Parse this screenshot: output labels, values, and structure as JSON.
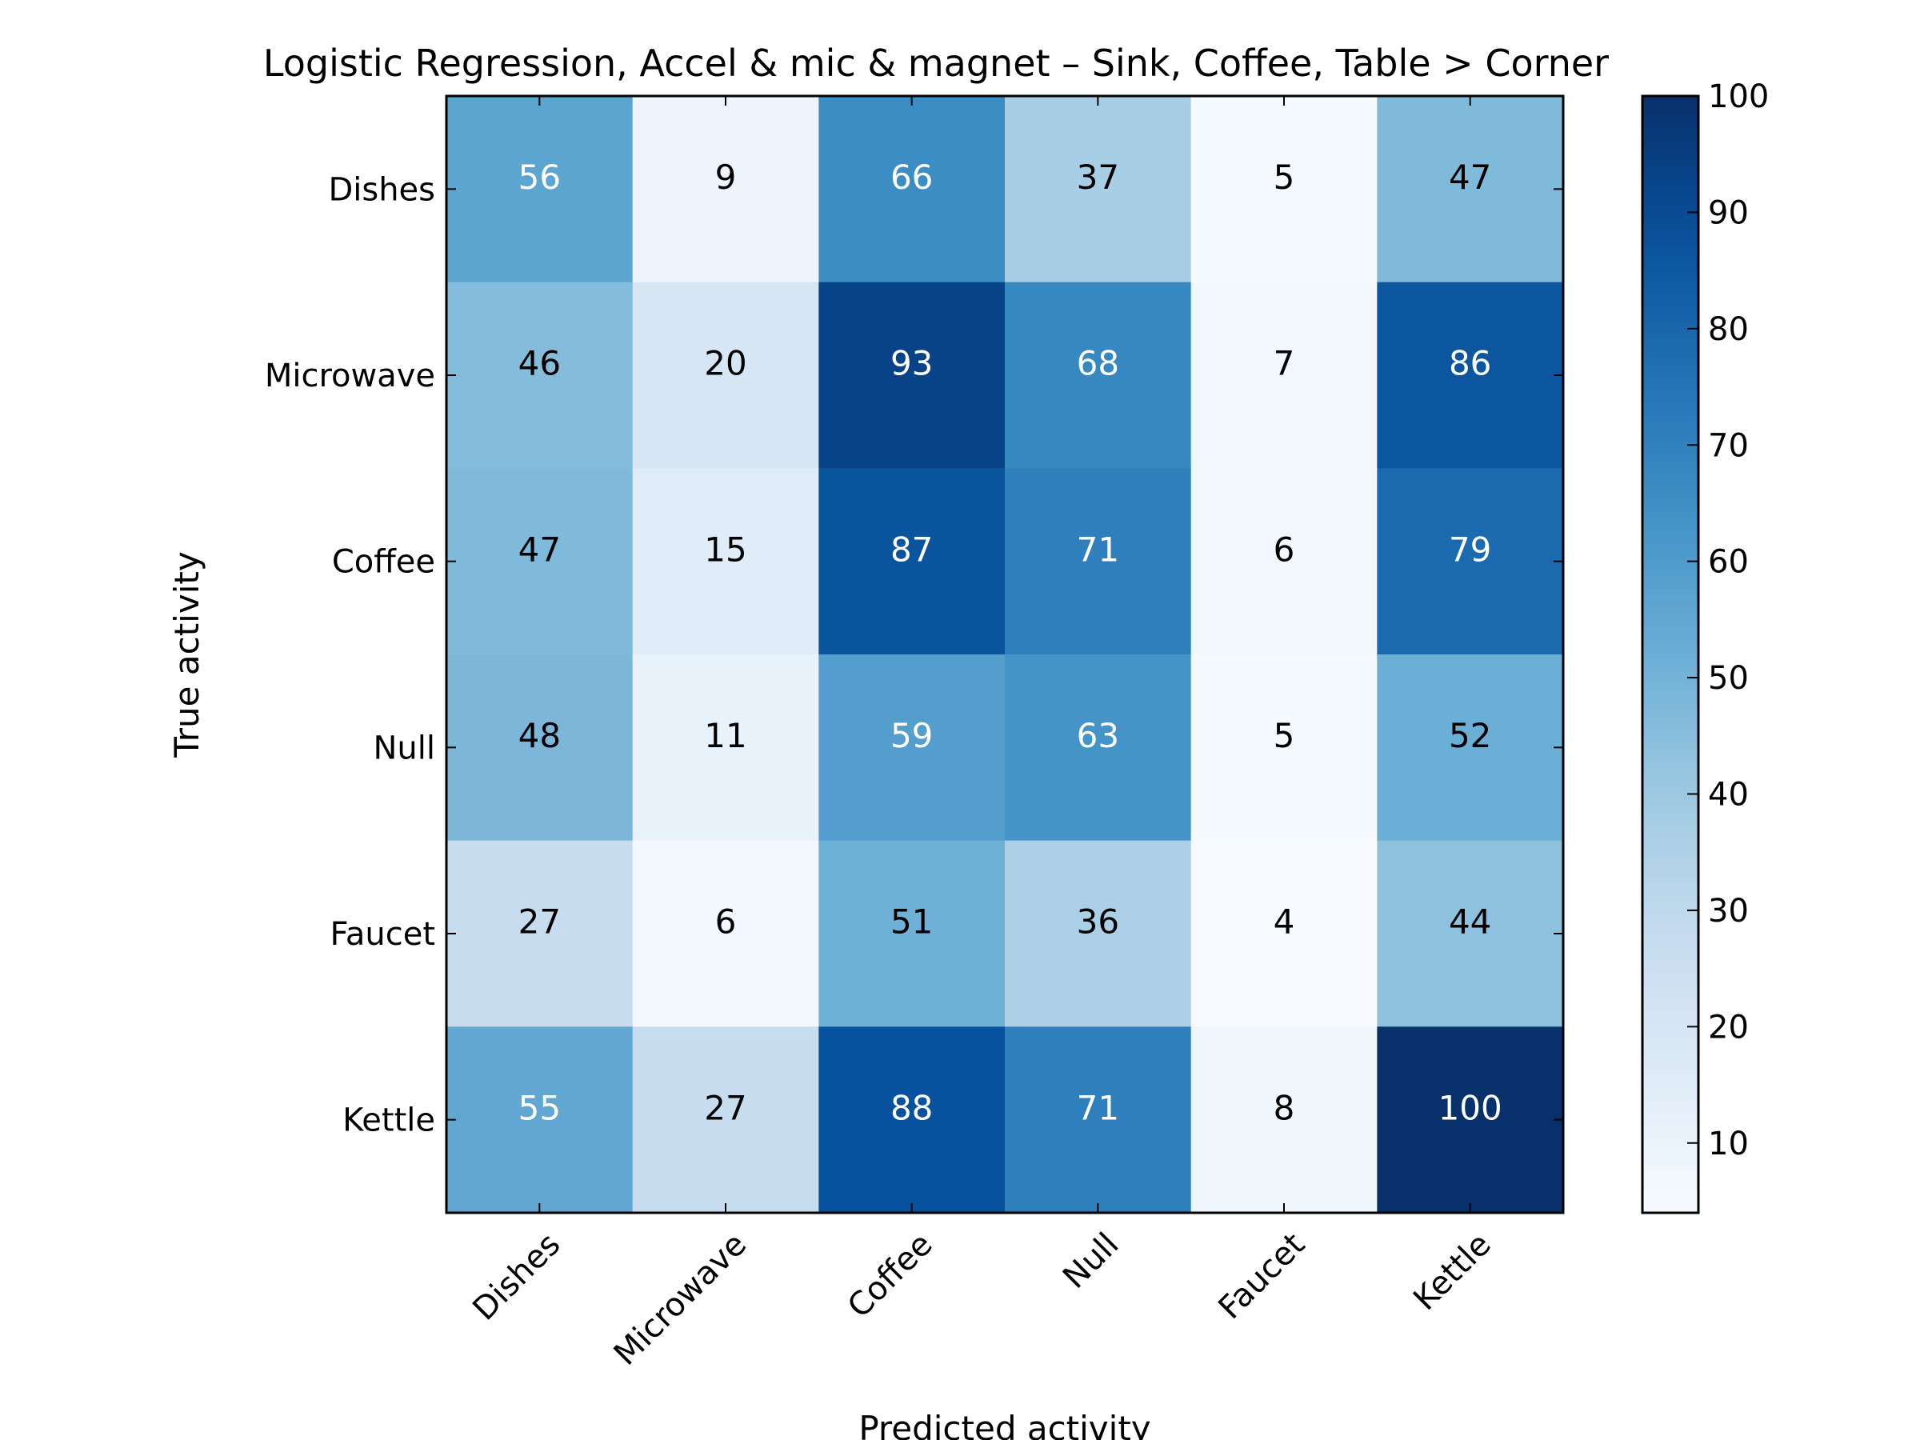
{
  "chart_data": {
    "type": "heatmap",
    "title": "Logistic Regression, Accel & mic & magnet – Sink, Coffee, Table > Corner",
    "xlabel": "Predicted activity",
    "ylabel": "True activity",
    "x_categories": [
      "Dishes",
      "Microwave",
      "Coffee",
      "Null",
      "Faucet",
      "Kettle"
    ],
    "y_categories": [
      "Dishes",
      "Microwave",
      "Coffee",
      "Null",
      "Faucet",
      "Kettle"
    ],
    "values": [
      [
        56,
        9,
        66,
        37,
        5,
        47
      ],
      [
        46,
        20,
        93,
        68,
        7,
        86
      ],
      [
        47,
        15,
        87,
        71,
        6,
        79
      ],
      [
        48,
        11,
        59,
        63,
        5,
        52
      ],
      [
        27,
        6,
        51,
        36,
        4,
        44
      ],
      [
        55,
        27,
        88,
        71,
        8,
        100
      ]
    ],
    "colormap": "Blues",
    "vmin": 4,
    "vmax": 100,
    "colorbar_ticks": [
      10,
      20,
      30,
      40,
      50,
      60,
      70,
      80,
      90,
      100
    ],
    "colors": {
      "blues_low": "#f7fbff",
      "blues_high": "#08306b",
      "text_dark": "#000000",
      "text_light": "#ffffff"
    }
  }
}
